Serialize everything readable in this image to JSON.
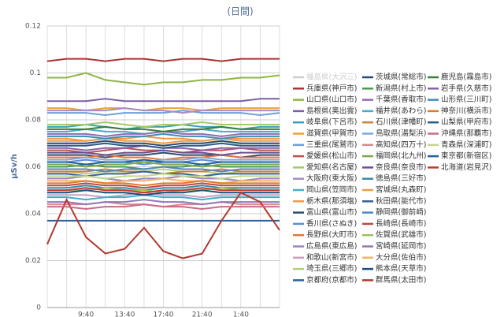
{
  "chart_data": {
    "type": "line",
    "title": "(日間)",
    "y_label": "μSv/h",
    "categories": [
      null,
      null,
      "9:40",
      null,
      "13:40",
      null,
      "17:40",
      null,
      "21:40",
      null,
      "1:40",
      null,
      null
    ],
    "ylim": [
      0,
      0.12
    ],
    "yticks": [
      0,
      0.02,
      0.04,
      0.06,
      0.08,
      0.1,
      0.12
    ],
    "grid": true,
    "series": [
      {
        "name": "福島県(大沢三)",
        "color": "#c8c8c8",
        "visible": false
      },
      {
        "name": "兵庫県(神戸市)",
        "color": "#aa3333",
        "values": [
          0.105,
          0.106,
          0.106,
          0.105,
          0.106,
          0.106,
          0.105,
          0.106,
          0.106,
          0.105,
          0.106,
          0.106,
          0.106
        ]
      },
      {
        "name": "山口県(山口市)",
        "color": "#8fb545",
        "values": [
          0.098,
          0.098,
          0.1,
          0.097,
          0.096,
          0.095,
          0.096,
          0.096,
          0.097,
          0.097,
          0.098,
          0.098,
          0.099
        ]
      },
      {
        "name": "島根県(奥出雲)",
        "color": "#7b5ea7",
        "values": [
          0.088,
          0.088,
          0.088,
          0.089,
          0.088,
          0.088,
          0.088,
          0.088,
          0.088,
          0.088,
          0.088,
          0.089,
          0.089
        ]
      },
      {
        "name": "岐阜県(下呂市)",
        "color": "#3a9fb8",
        "values": [
          0.077,
          0.077,
          0.078,
          0.077,
          0.076,
          0.077,
          0.077,
          0.078,
          0.077,
          0.077,
          0.076,
          0.077,
          0.077
        ]
      },
      {
        "name": "滋賀県(甲賀市)",
        "color": "#f0a030",
        "values": [
          0.085,
          0.085,
          0.084,
          0.085,
          0.085,
          0.084,
          0.085,
          0.085,
          0.084,
          0.085,
          0.085,
          0.085,
          0.085
        ]
      },
      {
        "name": "三重県(尾鷲市)",
        "color": "#6f9fd8",
        "values": [
          0.083,
          0.083,
          0.083,
          0.082,
          0.083,
          0.083,
          0.083,
          0.084,
          0.083,
          0.083,
          0.083,
          0.082,
          0.083
        ]
      },
      {
        "name": "愛媛県(松山市)",
        "color": "#c0504d",
        "values": [
          0.067,
          0.067,
          0.066,
          0.067,
          0.068,
          0.067,
          0.067,
          0.066,
          0.067,
          0.067,
          0.068,
          0.067,
          0.067
        ]
      },
      {
        "name": "愛知県(名古屋)",
        "color": "#a5c86a",
        "values": [
          0.078,
          0.078,
          0.078,
          0.079,
          0.078,
          0.077,
          0.078,
          0.078,
          0.079,
          0.078,
          0.078,
          0.078,
          0.078
        ]
      },
      {
        "name": "大阪府(東大阪)",
        "color": "#a58cc6",
        "values": [
          0.084,
          0.084,
          0.084,
          0.084,
          0.085,
          0.084,
          0.084,
          0.083,
          0.084,
          0.084,
          0.084,
          0.084,
          0.084
        ]
      },
      {
        "name": "岡山県(笠岡市)",
        "color": "#4bacc6",
        "values": [
          0.075,
          0.075,
          0.076,
          0.075,
          0.075,
          0.074,
          0.075,
          0.075,
          0.076,
          0.075,
          0.075,
          0.075,
          0.075
        ]
      },
      {
        "name": "栃木県(那須塩)",
        "color": "#f79646",
        "values": [
          0.072,
          0.072,
          0.071,
          0.072,
          0.072,
          0.073,
          0.072,
          0.072,
          0.071,
          0.072,
          0.072,
          0.072,
          0.072
        ]
      },
      {
        "name": "富山県(富山市)",
        "color": "#2c4d75",
        "values": [
          0.065,
          0.065,
          0.065,
          0.064,
          0.065,
          0.065,
          0.066,
          0.065,
          0.065,
          0.065,
          0.064,
          0.065,
          0.065
        ]
      },
      {
        "name": "香川県(さぬき)",
        "color": "#5b8fd0",
        "values": [
          0.062,
          0.062,
          0.063,
          0.062,
          0.062,
          0.061,
          0.062,
          0.062,
          0.063,
          0.062,
          0.062,
          0.062,
          0.062
        ]
      },
      {
        "name": "長野県(大町市)",
        "color": "#e8743b",
        "values": [
          0.064,
          0.064,
          0.064,
          0.065,
          0.064,
          0.064,
          0.063,
          0.064,
          0.064,
          0.065,
          0.064,
          0.064,
          0.064
        ]
      },
      {
        "name": "広島県(東広島)",
        "color": "#9a84c4",
        "values": [
          0.055,
          0.055,
          0.056,
          0.055,
          0.054,
          0.055,
          0.055,
          0.056,
          0.055,
          0.055,
          0.054,
          0.055,
          0.055
        ]
      },
      {
        "name": "和歌山(新宮市)",
        "color": "#c9a0c0",
        "values": [
          0.048,
          0.048,
          0.048,
          0.047,
          0.048,
          0.049,
          0.048,
          0.048,
          0.047,
          0.048,
          0.048,
          0.048,
          0.048
        ]
      },
      {
        "name": "埼玉県(三郷市)",
        "color": "#b5cf7a",
        "values": [
          0.058,
          0.058,
          0.057,
          0.058,
          0.058,
          0.058,
          0.059,
          0.058,
          0.058,
          0.057,
          0.058,
          0.058,
          0.058
        ]
      },
      {
        "name": "京都府(京都市)",
        "color": "#2e5f9e",
        "values": [
          0.037,
          0.037,
          0.037,
          0.037,
          0.037,
          0.037,
          0.037,
          0.037,
          0.037,
          0.037,
          0.037,
          0.037,
          0.037
        ]
      },
      {
        "name": "茨城県(常総市)",
        "color": "#2a4a70",
        "values": [
          0.07,
          0.07,
          0.07,
          0.071,
          0.07,
          0.07,
          0.069,
          0.07,
          0.07,
          0.071,
          0.07,
          0.07,
          0.07
        ]
      },
      {
        "name": "新潟県(村上市)",
        "color": "#4a9a50",
        "values": [
          0.06,
          0.06,
          0.061,
          0.06,
          0.06,
          0.059,
          0.06,
          0.06,
          0.061,
          0.06,
          0.06,
          0.06,
          0.06
        ]
      },
      {
        "name": "千葉県(香取市)",
        "color": "#8e6bb5",
        "values": [
          0.074,
          0.074,
          0.074,
          0.073,
          0.074,
          0.074,
          0.075,
          0.074,
          0.074,
          0.073,
          0.074,
          0.074,
          0.074
        ]
      },
      {
        "name": "福井県(あわら)",
        "color": "#3fb0c8",
        "values": [
          0.047,
          0.047,
          0.046,
          0.047,
          0.047,
          0.048,
          0.047,
          0.047,
          0.046,
          0.047,
          0.047,
          0.047,
          0.047
        ]
      },
      {
        "name": "石川県(津幡町)",
        "color": "#d4802a",
        "values": [
          0.058,
          0.058,
          0.058,
          0.059,
          0.058,
          0.058,
          0.057,
          0.058,
          0.058,
          0.059,
          0.058,
          0.058,
          0.058
        ]
      },
      {
        "name": "鳥取県(湯梨浜)",
        "color": "#7fa7d8",
        "values": [
          0.063,
          0.063,
          0.064,
          0.063,
          0.063,
          0.062,
          0.063,
          0.063,
          0.064,
          0.063,
          0.063,
          0.063,
          0.063
        ]
      },
      {
        "name": "高知県(四万十)",
        "color": "#d98a88",
        "values": [
          0.044,
          0.044,
          0.044,
          0.045,
          0.044,
          0.044,
          0.043,
          0.044,
          0.044,
          0.045,
          0.044,
          0.044,
          0.044
        ]
      },
      {
        "name": "福岡県(北九州)",
        "color": "#7ea84a",
        "values": [
          0.061,
          0.061,
          0.06,
          0.061,
          0.061,
          0.062,
          0.061,
          0.061,
          0.06,
          0.061,
          0.061,
          0.061,
          0.061
        ]
      },
      {
        "name": "奈良県(奈良市)",
        "color": "#6a5090",
        "values": [
          0.066,
          0.066,
          0.066,
          0.065,
          0.066,
          0.066,
          0.067,
          0.066,
          0.066,
          0.065,
          0.066,
          0.066,
          0.066
        ]
      },
      {
        "name": "徳島県(三好市)",
        "color": "#2f8ea8",
        "values": [
          0.051,
          0.051,
          0.052,
          0.051,
          0.051,
          0.05,
          0.051,
          0.051,
          0.052,
          0.051,
          0.051,
          0.051,
          0.051
        ]
      },
      {
        "name": "宮城県(丸森町)",
        "color": "#e89b48",
        "values": [
          0.071,
          0.071,
          0.071,
          0.072,
          0.071,
          0.071,
          0.07,
          0.071,
          0.071,
          0.072,
          0.071,
          0.071,
          0.071
        ]
      },
      {
        "name": "秋田県(能代市)",
        "color": "#34628f",
        "values": [
          0.057,
          0.057,
          0.056,
          0.057,
          0.057,
          0.058,
          0.057,
          0.057,
          0.056,
          0.057,
          0.057,
          0.057,
          0.057
        ]
      },
      {
        "name": "静岡県(御前崎)",
        "color": "#4f87c5",
        "values": [
          0.059,
          0.059,
          0.059,
          0.058,
          0.059,
          0.059,
          0.06,
          0.059,
          0.059,
          0.058,
          0.059,
          0.059,
          0.059
        ]
      },
      {
        "name": "長崎県(長崎市)",
        "color": "#b84a48",
        "values": [
          0.052,
          0.052,
          0.053,
          0.052,
          0.052,
          0.051,
          0.052,
          0.052,
          0.053,
          0.052,
          0.052,
          0.052,
          0.052
        ]
      },
      {
        "name": "佐賀県(武雄市)",
        "color": "#9cc05c",
        "values": [
          0.05,
          0.05,
          0.05,
          0.051,
          0.05,
          0.05,
          0.049,
          0.05,
          0.05,
          0.051,
          0.05,
          0.05,
          0.05
        ]
      },
      {
        "name": "宮崎県(延岡市)",
        "color": "#8f79b8",
        "values": [
          0.045,
          0.045,
          0.044,
          0.045,
          0.045,
          0.046,
          0.045,
          0.045,
          0.044,
          0.045,
          0.045,
          0.045,
          0.045
        ]
      },
      {
        "name": "大分県(佐伯市)",
        "color": "#f2b36b",
        "values": [
          0.054,
          0.054,
          0.054,
          0.053,
          0.054,
          0.054,
          0.055,
          0.054,
          0.054,
          0.053,
          0.054,
          0.054,
          0.054
        ]
      },
      {
        "name": "熊本県(天草市)",
        "color": "#1f4e79",
        "values": [
          0.049,
          0.049,
          0.05,
          0.049,
          0.049,
          0.048,
          0.049,
          0.049,
          0.05,
          0.049,
          0.049,
          0.049,
          0.049
        ]
      },
      {
        "name": "群馬県(太田市)",
        "color": "#b03a2e",
        "values": [
          0.027,
          0.046,
          0.03,
          0.023,
          0.025,
          0.034,
          0.024,
          0.021,
          0.023,
          0.037,
          0.049,
          0.045,
          0.033
        ]
      },
      {
        "name": "鹿児島(霧島市)",
        "color": "#3d7a3d",
        "values": [
          0.076,
          0.076,
          0.076,
          0.077,
          0.076,
          0.076,
          0.075,
          0.076,
          0.076,
          0.077,
          0.076,
          0.076,
          0.076
        ]
      },
      {
        "name": "岩手県(久慈市)",
        "color": "#8b5fa8",
        "values": [
          0.068,
          0.068,
          0.067,
          0.068,
          0.068,
          0.069,
          0.068,
          0.068,
          0.067,
          0.068,
          0.068,
          0.068,
          0.068
        ]
      },
      {
        "name": "山形県(三川町)",
        "color": "#3b8fb0",
        "values": [
          0.073,
          0.073,
          0.073,
          0.072,
          0.073,
          0.073,
          0.074,
          0.073,
          0.073,
          0.072,
          0.073,
          0.073,
          0.073
        ]
      },
      {
        "name": "神奈川(横浜市)",
        "color": "#e07a20",
        "values": [
          0.053,
          0.053,
          0.054,
          0.053,
          0.053,
          0.052,
          0.053,
          0.053,
          0.054,
          0.053,
          0.053,
          0.053,
          0.053
        ]
      },
      {
        "name": "山梨県(甲府市)",
        "color": "#2b5a8a",
        "values": [
          0.069,
          0.069,
          0.069,
          0.07,
          0.069,
          0.069,
          0.068,
          0.069,
          0.069,
          0.07,
          0.069,
          0.069,
          0.069
        ]
      },
      {
        "name": "沖縄県(那覇市)",
        "color": "#c86a8a",
        "values": [
          0.043,
          0.043,
          0.042,
          0.043,
          0.043,
          0.044,
          0.043,
          0.043,
          0.042,
          0.043,
          0.043,
          0.043,
          0.043
        ]
      },
      {
        "name": "青森県(深浦町)",
        "color": "#c2d890",
        "values": [
          0.056,
          0.056,
          0.056,
          0.055,
          0.056,
          0.056,
          0.057,
          0.056,
          0.056,
          0.055,
          0.056,
          0.056,
          0.056
        ]
      },
      {
        "name": "東京都(新宿区)",
        "color": "#2060a0",
        "values": [
          0.062,
          0.062,
          0.061,
          0.062,
          0.062,
          0.063,
          0.062,
          0.062,
          0.061,
          0.062,
          0.062,
          0.062,
          0.062
        ]
      },
      {
        "name": "北海道(岩見沢)",
        "color": "#c0392b",
        "values": [
          0.05,
          0.05,
          0.051,
          0.05,
          0.05,
          0.049,
          0.05,
          0.05,
          0.051,
          0.05,
          0.05,
          0.05,
          0.05
        ]
      }
    ]
  }
}
